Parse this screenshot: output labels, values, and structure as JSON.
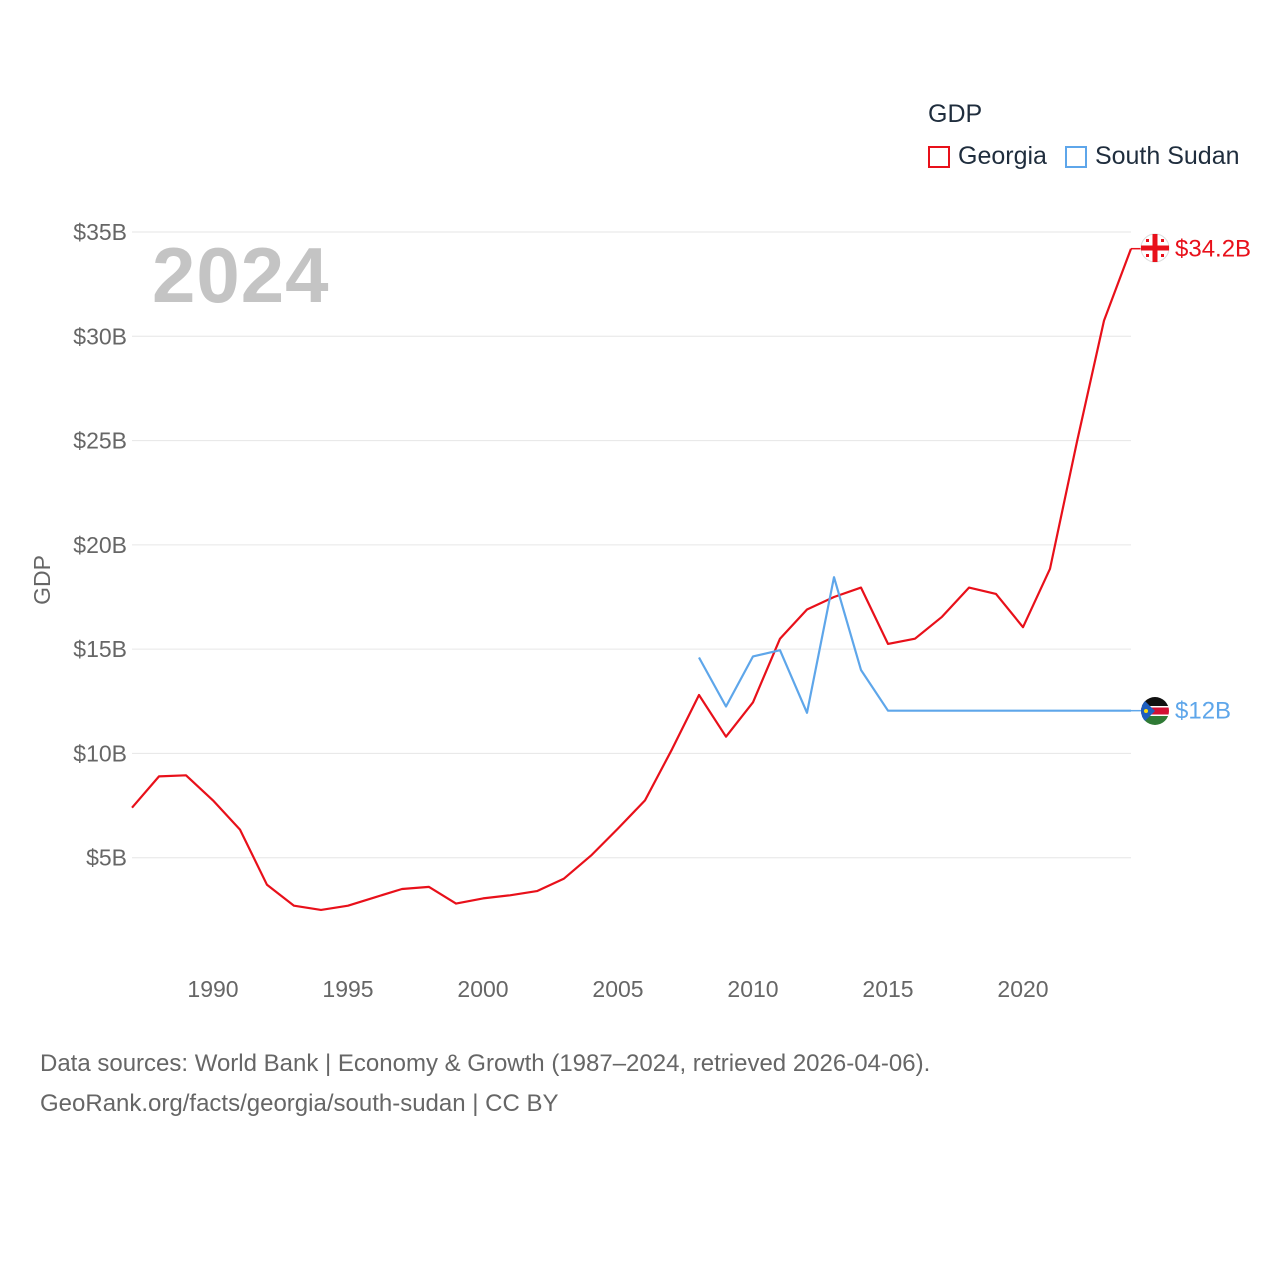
{
  "legend": {
    "title": "GDP",
    "items": [
      {
        "label": "Georgia",
        "color": "#e8101a"
      },
      {
        "label": "South Sudan",
        "color": "#5ea6ea"
      }
    ]
  },
  "current_year": "2024",
  "source": {
    "line1": "Data sources: World Bank | Economy & Growth (1987–2024, retrieved 2026-04-06).",
    "line2": "GeoRank.org/facts/georgia/south-sudan | CC BY"
  },
  "chart_data": {
    "type": "line",
    "title": "",
    "xlabel": "",
    "ylabel": "GDP",
    "xlim": [
      1987,
      2024
    ],
    "ylim": [
      0,
      35
    ],
    "y_ticks": [
      {
        "value": 5,
        "label": "$5B"
      },
      {
        "value": 10,
        "label": "$10B"
      },
      {
        "value": 15,
        "label": "$15B"
      },
      {
        "value": 20,
        "label": "$20B"
      },
      {
        "value": 25,
        "label": "$25B"
      },
      {
        "value": 30,
        "label": "$30B"
      },
      {
        "value": 35,
        "label": "$35B"
      }
    ],
    "x_ticks": [
      {
        "value": 1990,
        "label": "1990"
      },
      {
        "value": 1995,
        "label": "1995"
      },
      {
        "value": 2000,
        "label": "2000"
      },
      {
        "value": 2005,
        "label": "2005"
      },
      {
        "value": 2010,
        "label": "2010"
      },
      {
        "value": 2015,
        "label": "2015"
      },
      {
        "value": 2020,
        "label": "2020"
      }
    ],
    "series": [
      {
        "name": "Georgia",
        "color": "#e8101a",
        "end_label": "$34.2B",
        "x": [
          1987,
          1988,
          1989,
          1990,
          1991,
          1992,
          1993,
          1994,
          1995,
          1996,
          1997,
          1998,
          1999,
          2000,
          2001,
          2002,
          2003,
          2004,
          2005,
          2006,
          2007,
          2008,
          2009,
          2010,
          2011,
          2012,
          2013,
          2014,
          2015,
          2016,
          2017,
          2018,
          2019,
          2020,
          2021,
          2022,
          2023,
          2024
        ],
        "values": [
          7.4,
          8.9,
          8.95,
          7.75,
          6.35,
          3.7,
          2.7,
          2.5,
          2.7,
          3.1,
          3.5,
          3.6,
          2.8,
          3.05,
          3.2,
          3.4,
          4.0,
          5.1,
          6.4,
          7.75,
          10.2,
          12.8,
          10.8,
          12.45,
          15.5,
          16.9,
          17.5,
          17.95,
          15.25,
          15.5,
          16.55,
          17.95,
          17.65,
          16.05,
          18.85,
          24.95,
          30.75,
          34.2
        ]
      },
      {
        "name": "South Sudan",
        "color": "#5ea6ea",
        "end_label": "$12B",
        "x": [
          2008,
          2009,
          2010,
          2011,
          2012,
          2013,
          2014,
          2015,
          2016,
          2017,
          2018,
          2019,
          2020,
          2021,
          2022,
          2023,
          2024
        ],
        "values": [
          14.6,
          12.25,
          14.65,
          14.95,
          11.95,
          18.45,
          14.0,
          12.05,
          12.05,
          12.05,
          12.05,
          12.05,
          12.05,
          12.05,
          12.05,
          12.05,
          12.05
        ]
      }
    ]
  }
}
